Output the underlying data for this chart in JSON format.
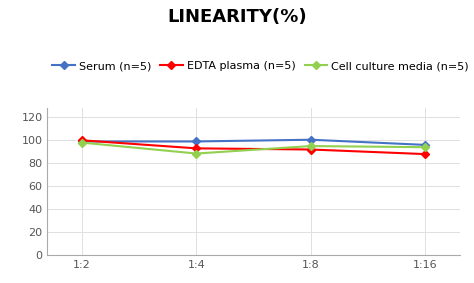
{
  "title": "LINEARITY(%)",
  "x_labels": [
    "1:2",
    "1:4",
    "1:8",
    "1:16"
  ],
  "series": [
    {
      "label": "Serum (n=5)",
      "values": [
        98.5,
        98.5,
        100.0,
        95.5
      ],
      "color": "#4472C4",
      "marker": "D"
    },
    {
      "label": "EDTA plasma (n=5)",
      "values": [
        99.5,
        92.5,
        91.5,
        87.5
      ],
      "color": "#FF0000",
      "marker": "D"
    },
    {
      "label": "Cell culture media (n=5)",
      "values": [
        97.5,
        88.0,
        94.5,
        93.5
      ],
      "color": "#92D050",
      "marker": "D"
    }
  ],
  "ylim": [
    0,
    128
  ],
  "yticks": [
    0,
    20,
    40,
    60,
    80,
    100,
    120
  ],
  "background_color": "#ffffff",
  "title_fontsize": 13,
  "legend_fontsize": 8,
  "tick_fontsize": 8
}
